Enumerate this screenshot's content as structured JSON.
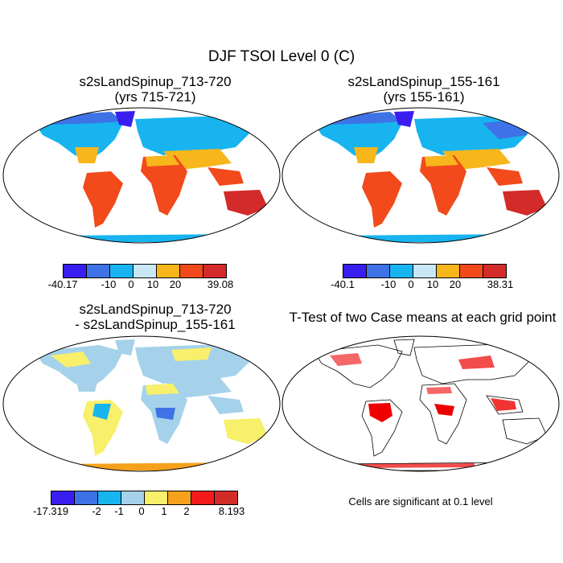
{
  "figure_title": "DJF TSOI Level 0 (C)",
  "panels": [
    {
      "title1": "s2sLandSpinup_713-720",
      "title2": "(yrs 715-721)",
      "colorbar": {
        "labels": [
          "-40.17",
          "-10",
          "0",
          "10",
          "20",
          "39.08"
        ],
        "colors": [
          "#3a1ef0",
          "#3e72e6",
          "#17b4f0",
          "#c8e8f5",
          "#f6b61c",
          "#f24a1a",
          "#d32a2a"
        ]
      }
    },
    {
      "title1": "s2sLandSpinup_155-161",
      "title2": "(yrs 155-161)",
      "colorbar": {
        "labels": [
          "-40.1",
          "-10",
          "0",
          "10",
          "20",
          "38.31"
        ],
        "colors": [
          "#3a1ef0",
          "#3e72e6",
          "#17b4f0",
          "#c8e8f5",
          "#f6b61c",
          "#f24a1a",
          "#d32a2a"
        ]
      }
    },
    {
      "title1": "s2sLandSpinup_713-720",
      "title2": "- s2sLandSpinup_155-161",
      "colorbar": {
        "labels": [
          "-17.319",
          "-2",
          "-1",
          "0",
          "1",
          "2",
          "8.193"
        ],
        "colors": [
          "#3a1ef0",
          "#3e72e6",
          "#17b4f0",
          "#a5d2ea",
          "#f8ef6a",
          "#f6a11c",
          "#f21a1a",
          "#d32a2a"
        ]
      }
    },
    {
      "title1": "T-Test of two Case means at each grid point",
      "title2": "",
      "note": "Cells are significant at 0.1 level"
    }
  ]
}
